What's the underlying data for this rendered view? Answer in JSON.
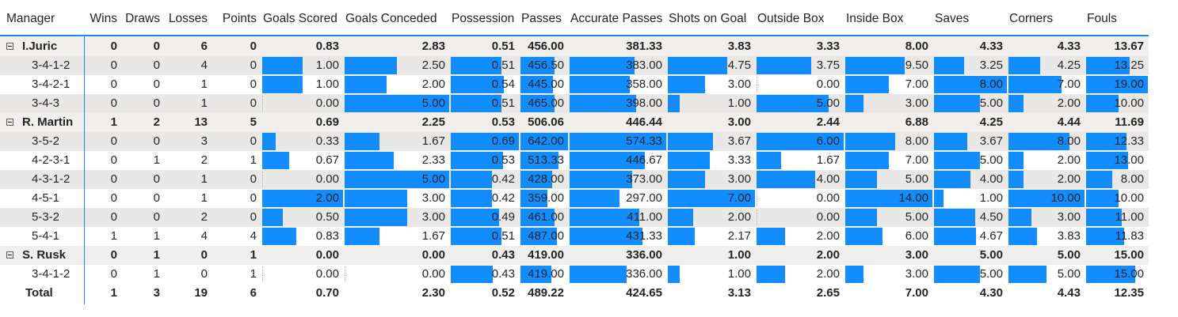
{
  "colors": {
    "bar": "#118dff",
    "group_row_bg": "#f0efee",
    "stripe_bg": "#e9e8e7",
    "divider": "#118dff"
  },
  "headers": {
    "manager": "Manager",
    "columns": [
      "Wins",
      "Draws",
      "Losses",
      "Points",
      "Goals Scored",
      "Goals Conceded",
      "Possession",
      "Passes",
      "Accurate Passes",
      "Shots on Goal",
      "Outside Box",
      "Inside Box",
      "Saves",
      "Corners",
      "Fouls"
    ]
  },
  "rows": [
    {
      "type": "group",
      "label": "I.Juric",
      "expander": "minus-icon",
      "values": [
        "0",
        "0",
        "6",
        "0",
        "0.83",
        "2.83",
        "0.51",
        "456.00",
        "381.33",
        "3.83",
        "3.33",
        "8.00",
        "4.33",
        "4.33",
        "13.67"
      ],
      "fills": []
    },
    {
      "type": "child",
      "label": "3-4-1-2",
      "values": [
        "0",
        "0",
        "4",
        "0",
        "1.00",
        "2.50",
        "0.51",
        "456.50",
        "383.00",
        "4.75",
        "3.75",
        "9.50",
        "3.25",
        "4.25",
        "13.25"
      ],
      "fills": [
        null,
        null,
        null,
        null,
        0.5,
        0.5,
        0.74,
        0.71,
        0.67,
        0.68,
        0.63,
        0.68,
        0.41,
        0.42,
        0.7
      ]
    },
    {
      "type": "child",
      "label": "3-4-2-1",
      "values": [
        "0",
        "0",
        "1",
        "0",
        "1.00",
        "2.00",
        "0.54",
        "445.00",
        "358.00",
        "3.00",
        "0.00",
        "7.00",
        "8.00",
        "7.00",
        "19.00"
      ],
      "fills": [
        null,
        null,
        null,
        null,
        0.5,
        0.4,
        0.78,
        0.69,
        0.62,
        0.43,
        0,
        0.5,
        1.0,
        0.7,
        1.0
      ]
    },
    {
      "type": "child",
      "label": "3-4-3",
      "values": [
        "0",
        "0",
        "1",
        "0",
        "0.00",
        "5.00",
        "0.51",
        "465.00",
        "398.00",
        "1.00",
        "5.00",
        "3.00",
        "5.00",
        "2.00",
        "10.00"
      ],
      "fills": [
        null,
        null,
        null,
        null,
        0,
        1.0,
        0.74,
        0.72,
        0.69,
        0.14,
        0.83,
        0.21,
        0.63,
        0.2,
        0.53
      ]
    },
    {
      "type": "group",
      "label": "R. Martin",
      "expander": "minus-icon",
      "values": [
        "1",
        "2",
        "13",
        "5",
        "0.69",
        "2.25",
        "0.53",
        "506.06",
        "446.44",
        "3.00",
        "2.44",
        "6.88",
        "4.25",
        "4.44",
        "11.69"
      ],
      "fills": []
    },
    {
      "type": "child",
      "label": "3-5-2",
      "values": [
        "0",
        "0",
        "3",
        "0",
        "0.33",
        "1.67",
        "0.69",
        "642.00",
        "574.33",
        "3.67",
        "6.00",
        "8.00",
        "3.67",
        "8.00",
        "12.33"
      ],
      "fills": [
        null,
        null,
        null,
        null,
        0.17,
        0.33,
        1.0,
        1.0,
        1.0,
        0.52,
        1.0,
        0.57,
        0.46,
        0.8,
        0.65
      ]
    },
    {
      "type": "child",
      "label": "4-2-3-1",
      "values": [
        "0",
        "1",
        "2",
        "1",
        "0.67",
        "2.33",
        "0.53",
        "513.33",
        "446.67",
        "3.33",
        "1.67",
        "7.00",
        "5.00",
        "2.00",
        "13.00"
      ],
      "fills": [
        null,
        null,
        null,
        null,
        0.33,
        0.47,
        0.77,
        0.8,
        0.78,
        0.48,
        0.28,
        0.5,
        0.63,
        0.2,
        0.68
      ]
    },
    {
      "type": "child",
      "label": "4-3-1-2",
      "values": [
        "0",
        "0",
        "1",
        "0",
        "0.00",
        "5.00",
        "0.42",
        "428.00",
        "373.00",
        "3.00",
        "4.00",
        "5.00",
        "4.00",
        "2.00",
        "8.00"
      ],
      "fills": [
        null,
        null,
        null,
        null,
        0,
        1.0,
        0.61,
        0.67,
        0.65,
        0.43,
        0.67,
        0.36,
        0.5,
        0.2,
        0.42
      ]
    },
    {
      "type": "child",
      "label": "4-5-1",
      "values": [
        "0",
        "0",
        "1",
        "0",
        "2.00",
        "3.00",
        "0.42",
        "359.00",
        "297.00",
        "7.00",
        "0.00",
        "14.00",
        "1.00",
        "10.00",
        "10.00"
      ],
      "fills": [
        null,
        null,
        null,
        null,
        1.0,
        0.6,
        0.61,
        0.56,
        0.52,
        1.0,
        0,
        1.0,
        0.13,
        1.0,
        0.53
      ]
    },
    {
      "type": "child",
      "label": "5-3-2",
      "values": [
        "0",
        "0",
        "2",
        "0",
        "0.50",
        "3.00",
        "0.49",
        "461.00",
        "411.00",
        "2.00",
        "0.00",
        "5.00",
        "4.50",
        "3.00",
        "11.00"
      ],
      "fills": [
        null,
        null,
        null,
        null,
        0.25,
        0.6,
        0.71,
        0.72,
        0.72,
        0.29,
        0,
        0.36,
        0.56,
        0.3,
        0.58
      ]
    },
    {
      "type": "child",
      "label": "5-4-1",
      "values": [
        "1",
        "1",
        "4",
        "4",
        "0.83",
        "1.67",
        "0.51",
        "487.00",
        "431.33",
        "2.17",
        "2.00",
        "6.00",
        "4.67",
        "3.83",
        "11.83"
      ],
      "fills": [
        null,
        null,
        null,
        null,
        0.42,
        0.33,
        0.74,
        0.76,
        0.75,
        0.31,
        0.33,
        0.43,
        0.58,
        0.38,
        0.62
      ]
    },
    {
      "type": "group",
      "label": "S. Rusk",
      "expander": "minus-icon",
      "values": [
        "0",
        "1",
        "0",
        "1",
        "0.00",
        "0.00",
        "0.43",
        "419.00",
        "336.00",
        "1.00",
        "2.00",
        "3.00",
        "5.00",
        "5.00",
        "15.00"
      ],
      "fills": []
    },
    {
      "type": "child",
      "label": "3-4-1-2",
      "values": [
        "0",
        "1",
        "0",
        "1",
        "0.00",
        "0.00",
        "0.43",
        "419.00",
        "336.00",
        "1.00",
        "2.00",
        "3.00",
        "5.00",
        "5.00",
        "15.00"
      ],
      "fills": [
        null,
        null,
        null,
        null,
        0,
        0,
        0.62,
        0.65,
        0.59,
        0.14,
        0.33,
        0.21,
        0.63,
        0.5,
        0.79
      ]
    },
    {
      "type": "total",
      "label": "Total",
      "values": [
        "1",
        "3",
        "19",
        "6",
        "0.70",
        "2.30",
        "0.52",
        "489.22",
        "424.65",
        "3.13",
        "2.65",
        "7.00",
        "4.30",
        "4.43",
        "12.35"
      ],
      "fills": []
    }
  ]
}
